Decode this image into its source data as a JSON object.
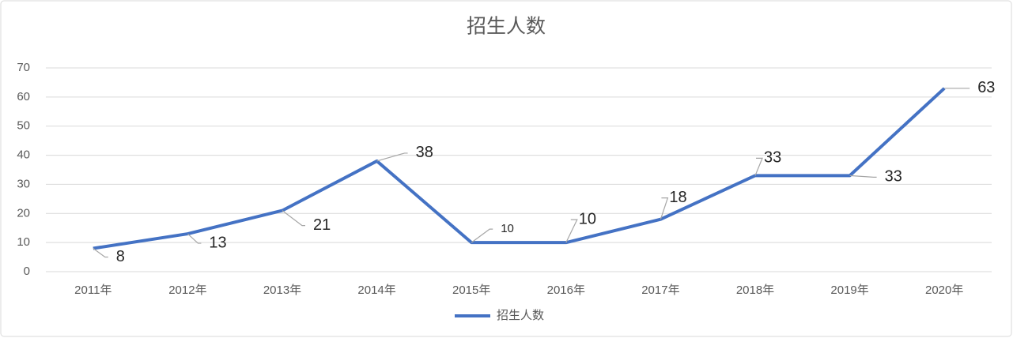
{
  "chart_data": {
    "type": "line",
    "title": "招生人数",
    "categories": [
      "2011年",
      "2012年",
      "2013年",
      "2014年",
      "2015年",
      "2016年",
      "2017年",
      "2018年",
      "2019年",
      "2020年"
    ],
    "series": [
      {
        "name": "招生人数",
        "color": "#4472c4",
        "values": [
          8,
          13,
          21,
          38,
          10,
          10,
          18,
          33,
          33,
          63
        ]
      }
    ],
    "ylim": [
      0,
      70
    ],
    "yticks": [
      0,
      10,
      20,
      30,
      40,
      50,
      60,
      70
    ],
    "grid": true,
    "legend": "bottom"
  }
}
